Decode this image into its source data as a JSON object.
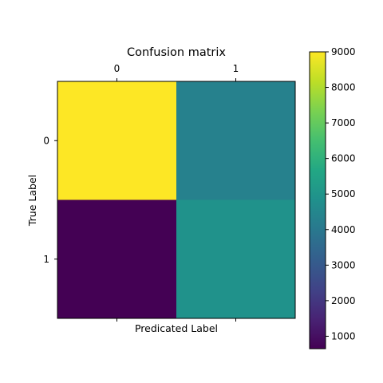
{
  "chart_data": {
    "type": "heatmap",
    "title": "Confusion matrix",
    "xlabel": "Predicated Label",
    "ylabel": "True Label",
    "x_categories": [
      "0",
      "1"
    ],
    "y_categories": [
      "0",
      "1"
    ],
    "values": [
      [
        9000,
        4300
      ],
      [
        650,
        4900
      ]
    ],
    "colormap": "viridis",
    "colorbar": {
      "vmin": 650,
      "vmax": 9000,
      "ticks": [
        1000,
        2000,
        3000,
        4000,
        5000,
        6000,
        7000,
        8000,
        9000
      ]
    },
    "xaxis_ticks_position": "top"
  }
}
